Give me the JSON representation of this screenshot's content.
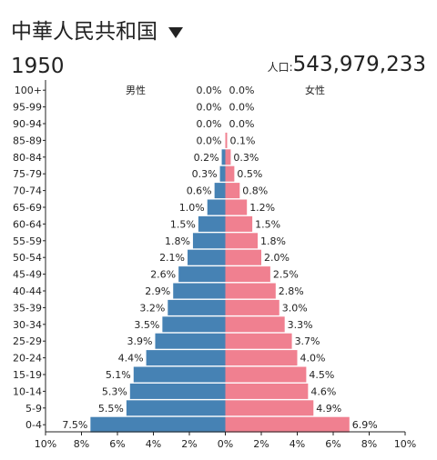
{
  "header": {
    "country": "中華人民共和国",
    "year": "1950",
    "population_label": "人口:",
    "population_value": "543,979,233",
    "dropdown_icon": "triangle-down-icon"
  },
  "colors": {
    "male": "#4682b4",
    "female": "#f08090"
  },
  "chart_data": {
    "type": "bar",
    "subtype": "population-pyramid",
    "age_groups": [
      "100+",
      "95-99",
      "90-94",
      "85-89",
      "80-84",
      "75-79",
      "70-74",
      "65-69",
      "60-64",
      "55-59",
      "50-54",
      "45-49",
      "40-44",
      "35-39",
      "30-34",
      "25-29",
      "20-24",
      "15-19",
      "10-14",
      "5-9",
      "0-4"
    ],
    "series": [
      {
        "name": "男性",
        "values": [
          0.0,
          0.0,
          0.0,
          0.0,
          0.2,
          0.3,
          0.6,
          1.0,
          1.5,
          1.8,
          2.1,
          2.6,
          2.9,
          3.2,
          3.5,
          3.9,
          4.4,
          5.1,
          5.3,
          5.5,
          7.5
        ]
      },
      {
        "name": "女性",
        "values": [
          0.0,
          0.0,
          0.0,
          0.1,
          0.3,
          0.5,
          0.8,
          1.2,
          1.5,
          1.8,
          2.0,
          2.5,
          2.8,
          3.0,
          3.3,
          3.7,
          4.0,
          4.5,
          4.6,
          4.9,
          6.9
        ]
      }
    ],
    "value_labels": {
      "male": [
        "0.0%",
        "0.0%",
        "0.0%",
        "0.0%",
        "0.2%",
        "0.3%",
        "0.6%",
        "1.0%",
        "1.5%",
        "1.8%",
        "2.1%",
        "2.6%",
        "2.9%",
        "3.2%",
        "3.5%",
        "3.9%",
        "4.4%",
        "5.1%",
        "5.3%",
        "5.5%",
        "7.5%"
      ],
      "female": [
        "0.0%",
        "0.0%",
        "0.0%",
        "0.1%",
        "0.3%",
        "0.5%",
        "0.8%",
        "1.2%",
        "1.5%",
        "1.8%",
        "2.0%",
        "2.5%",
        "2.8%",
        "3.0%",
        "3.3%",
        "3.7%",
        "4.0%",
        "4.5%",
        "4.6%",
        "4.9%",
        "6.9%"
      ]
    },
    "x_range": [
      -10,
      10
    ],
    "x_ticks": [
      -10,
      -8,
      -6,
      -4,
      -2,
      0,
      2,
      4,
      6,
      8,
      10
    ],
    "x_tick_labels": [
      "10%",
      "8%",
      "6%",
      "4%",
      "2%",
      "0%",
      "2%",
      "4%",
      "6%",
      "8%",
      "10%"
    ],
    "grid": false
  }
}
